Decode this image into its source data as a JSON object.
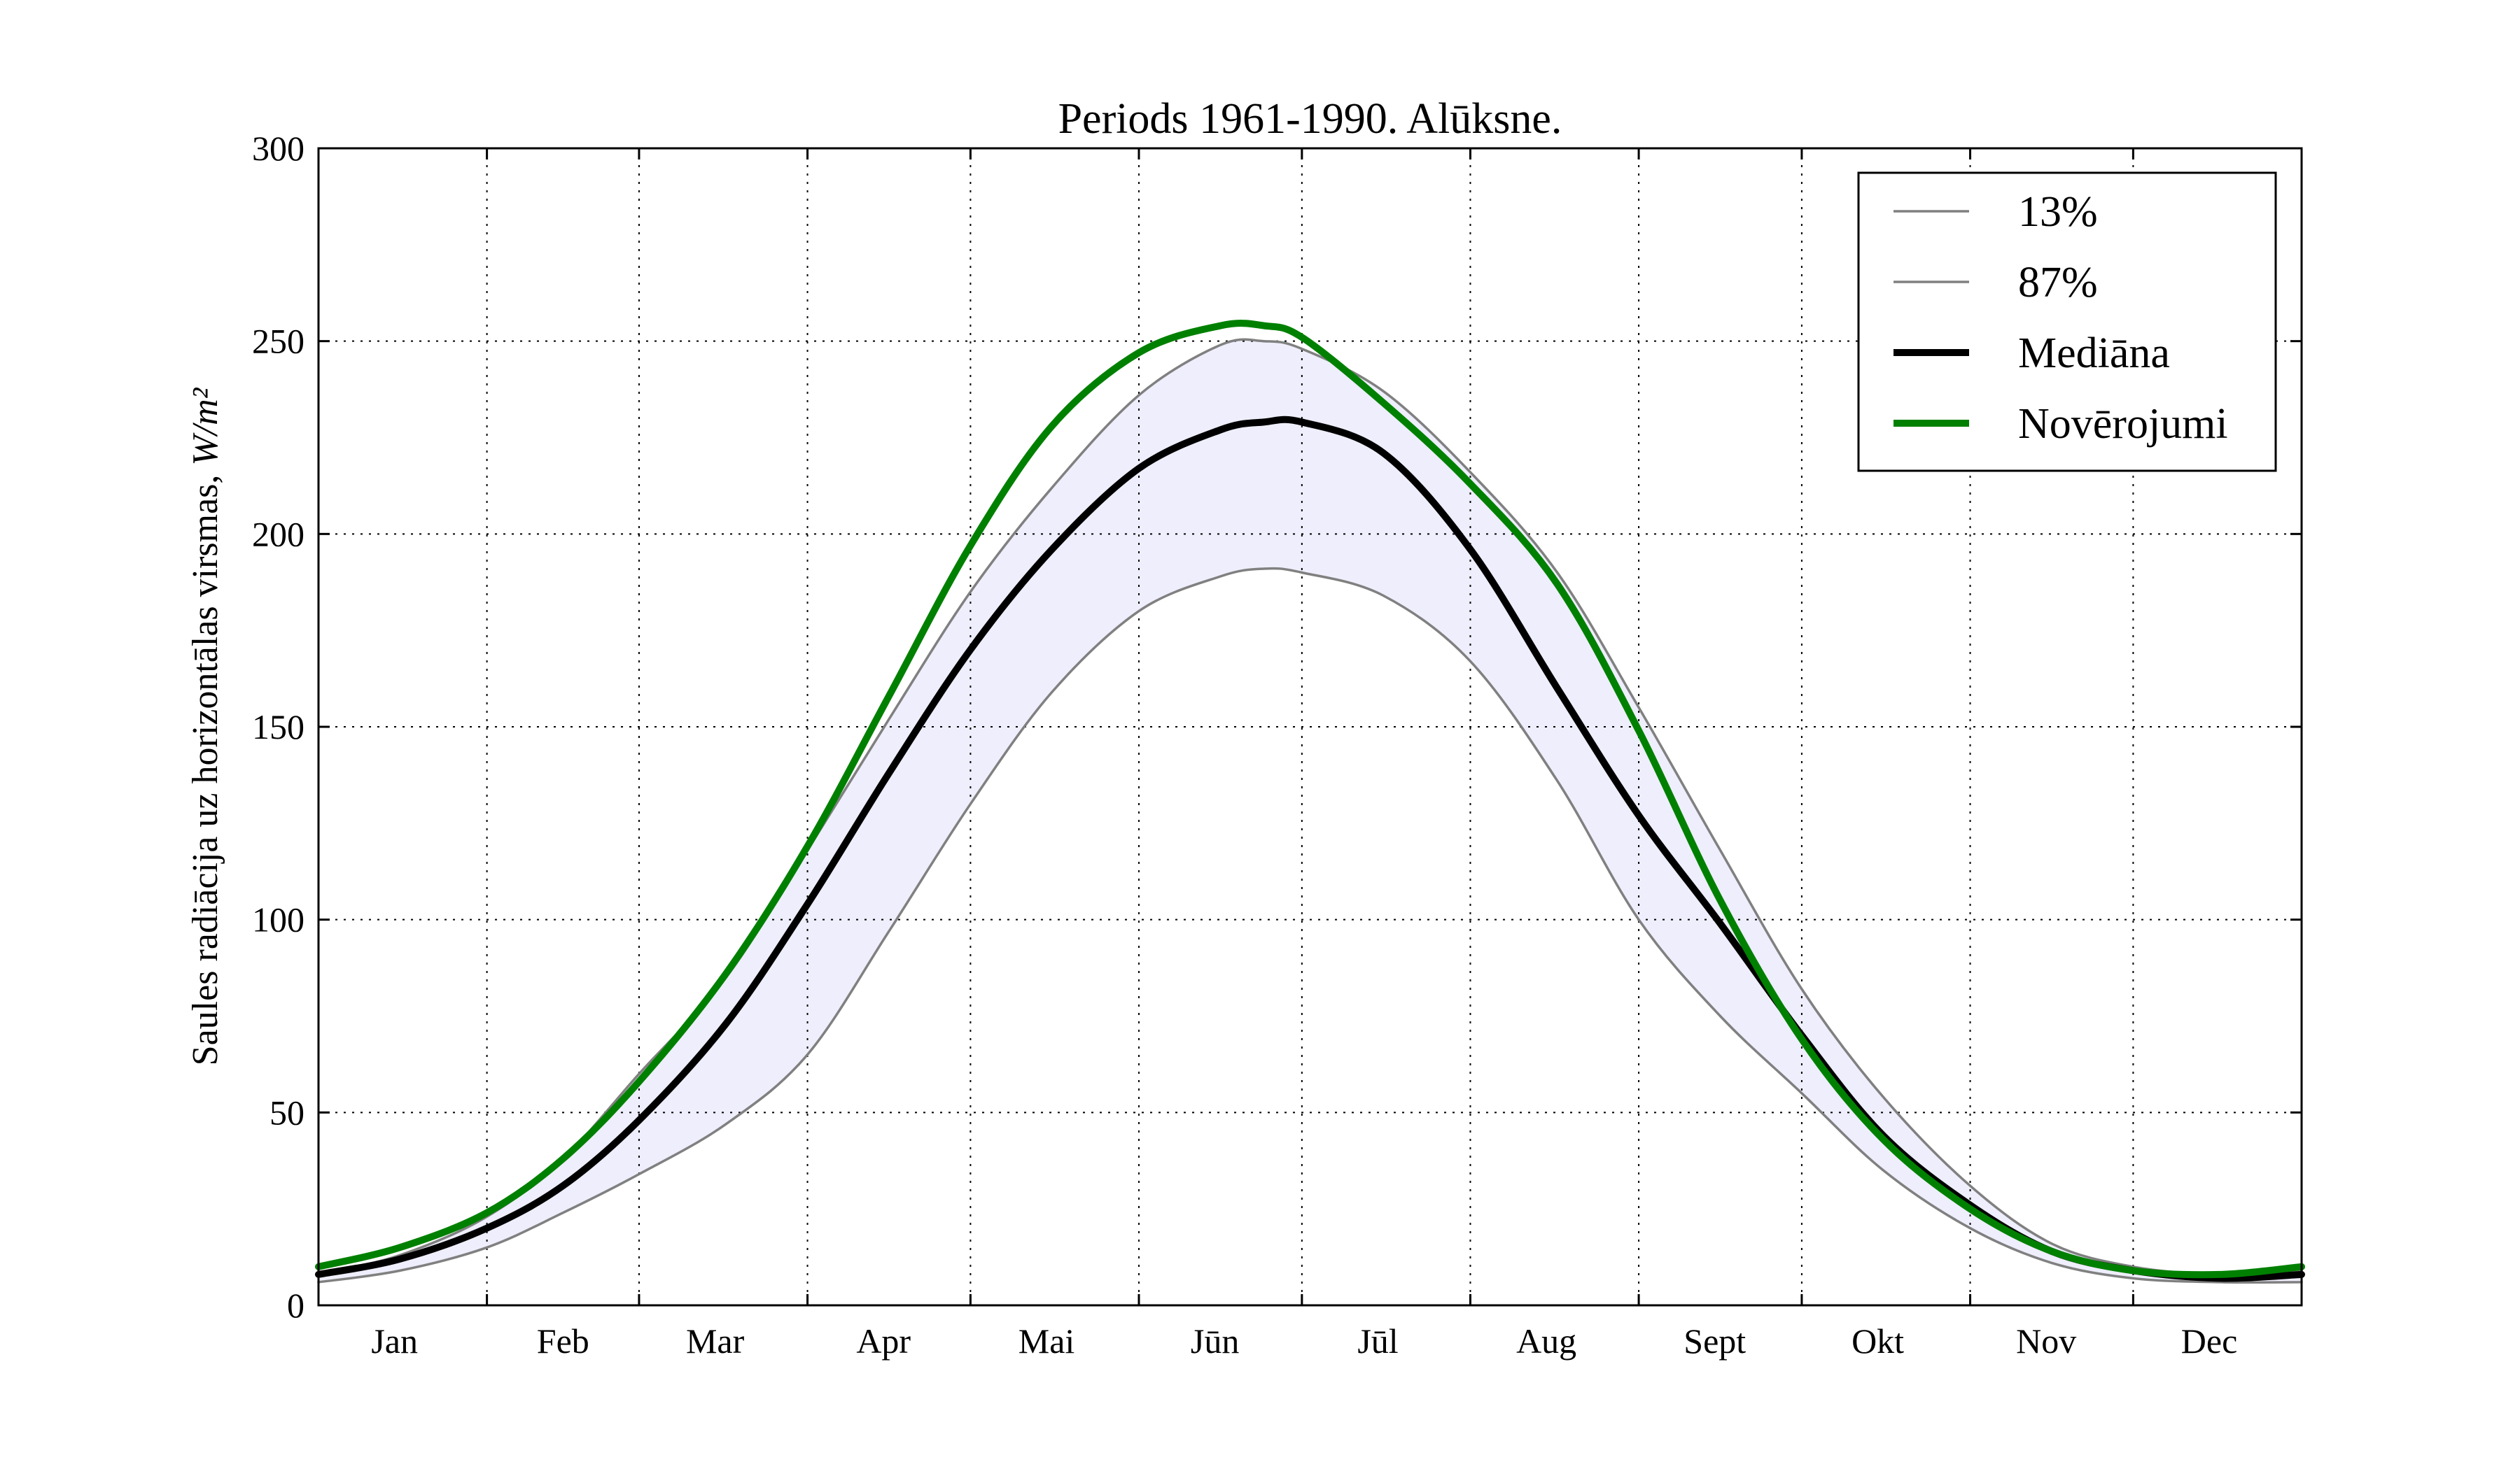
{
  "chart_data": {
    "type": "line",
    "title": "Periods 1961-1990. Alūksne.",
    "ylabel_text": "Saules radiācija uz horizontālas virsmas, ",
    "ylabel_unit": "W/m²",
    "ylim": [
      0,
      300
    ],
    "yticks": [
      "0",
      "50",
      "100",
      "150",
      "200",
      "250",
      "300"
    ],
    "xlim": [
      0,
      365
    ],
    "month_boundaries": [
      31,
      59,
      90,
      120,
      151,
      181,
      212,
      243,
      273,
      304,
      334
    ],
    "month_label_positions": [
      14,
      45,
      73,
      104,
      134,
      165,
      195,
      226,
      257,
      287,
      318,
      348
    ],
    "months": [
      "Jan",
      "Feb",
      "Mar",
      "Apr",
      "Mai",
      "Jūn",
      "Jūl",
      "Aug",
      "Sept",
      "Okt",
      "Nov",
      "Dec"
    ],
    "grid": true,
    "legend_position": "top-right",
    "band_color": "#eeeefc",
    "series": [
      {
        "name": "13%",
        "color": "#808080",
        "x": [
          0,
          15,
          31,
          45,
          59,
          75,
          90,
          105,
          120,
          135,
          151,
          166,
          174,
          181,
          196,
          212,
          228,
          243,
          258,
          273,
          288,
          304,
          319,
          334,
          350,
          365
        ],
        "values": [
          6,
          9,
          15,
          24,
          34,
          47,
          65,
          97,
          130,
          159,
          180,
          189,
          191,
          190,
          184,
          167,
          136,
          100,
          75,
          55,
          35,
          20,
          11,
          7,
          6,
          6
        ]
      },
      {
        "name": "87%",
        "color": "#808080",
        "x": [
          0,
          15,
          31,
          45,
          59,
          75,
          90,
          105,
          120,
          135,
          151,
          166,
          174,
          181,
          196,
          212,
          228,
          243,
          258,
          273,
          288,
          304,
          319,
          334,
          350,
          365
        ],
        "values": [
          8,
          13,
          23,
          38,
          60,
          85,
          118,
          152,
          185,
          212,
          236,
          249,
          250,
          248,
          237,
          216,
          190,
          155,
          118,
          82,
          54,
          31,
          16,
          10,
          8,
          9
        ]
      },
      {
        "name": "Mediāna",
        "color": "#000000",
        "x": [
          0,
          15,
          31,
          45,
          59,
          75,
          90,
          105,
          120,
          135,
          151,
          166,
          174,
          181,
          196,
          212,
          228,
          243,
          258,
          273,
          288,
          304,
          319,
          334,
          350,
          365
        ],
        "values": [
          8,
          12,
          20,
          31,
          48,
          73,
          104,
          138,
          170,
          196,
          217,
          227,
          229,
          229,
          221,
          196,
          160,
          127,
          99,
          70,
          44,
          26,
          14,
          9,
          7,
          8
        ]
      },
      {
        "name": "Novērojumi",
        "color": "#008000",
        "x": [
          0,
          15,
          31,
          45,
          59,
          75,
          90,
          105,
          120,
          135,
          151,
          166,
          174,
          181,
          196,
          212,
          228,
          243,
          258,
          273,
          288,
          304,
          319,
          334,
          350,
          365
        ],
        "values": [
          10,
          15,
          24,
          38,
          58,
          86,
          119,
          158,
          197,
          228,
          247,
          254,
          254,
          251,
          234,
          213,
          187,
          149,
          105,
          69,
          43,
          25,
          14,
          9,
          8,
          10
        ]
      }
    ]
  }
}
